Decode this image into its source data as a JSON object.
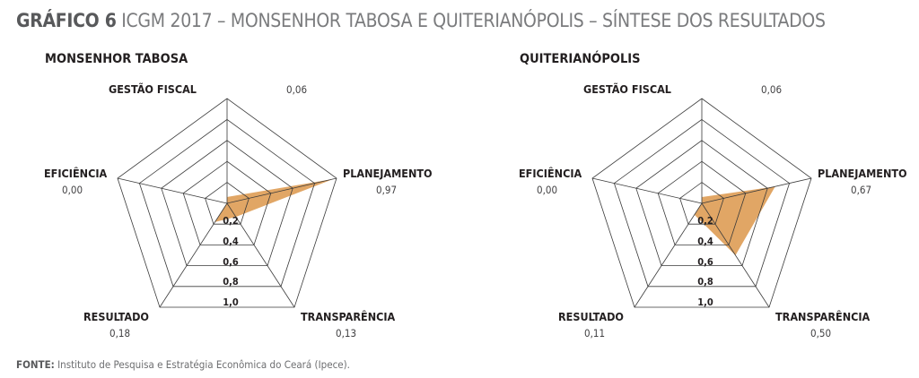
{
  "title": {
    "label": "GRÁFICO 6",
    "text": "ICGM 2017 – MONSENHOR TABOSA E QUITERIANÓPOLIS – SÍNTESE DOS RESULTADOS"
  },
  "footer": {
    "label": "FONTE:",
    "text": "Instituto de Pesquisa e Estratégia Econômica do Ceará (Ipece)."
  },
  "colors": {
    "fill": "#e1a665",
    "grid": "#3a3a3a"
  },
  "chart_data": [
    {
      "type": "radar",
      "title": "MONSENHOR TABOSA",
      "axes": [
        "GESTÃO FISCAL",
        "PLANEJAMENTO",
        "TRANSPARÊNCIA",
        "RESULTADO",
        "EFICIÊNCIA"
      ],
      "values": [
        0.06,
        0.97,
        0.13,
        0.18,
        0.0
      ],
      "value_labels": [
        "0,06",
        "0,97",
        "0,13",
        "0,18",
        "0,00"
      ],
      "ring_labels": [
        "0,2",
        "0,4",
        "0,6",
        "0,8",
        "1,0"
      ],
      "range": [
        0,
        1
      ]
    },
    {
      "type": "radar",
      "title": "QUITERIANÓPOLIS",
      "axes": [
        "GESTÃO FISCAL",
        "PLANEJAMENTO",
        "TRANSPARÊNCIA",
        "RESULTADO",
        "EFICIÊNCIA"
      ],
      "values": [
        0.06,
        0.67,
        0.5,
        0.11,
        0.0
      ],
      "value_labels": [
        "0,06",
        "0,67",
        "0,50",
        "0,11",
        "0,00"
      ],
      "ring_labels": [
        "0,2",
        "0,4",
        "0,6",
        "0,8",
        "1,0"
      ],
      "range": [
        0,
        1
      ]
    }
  ]
}
